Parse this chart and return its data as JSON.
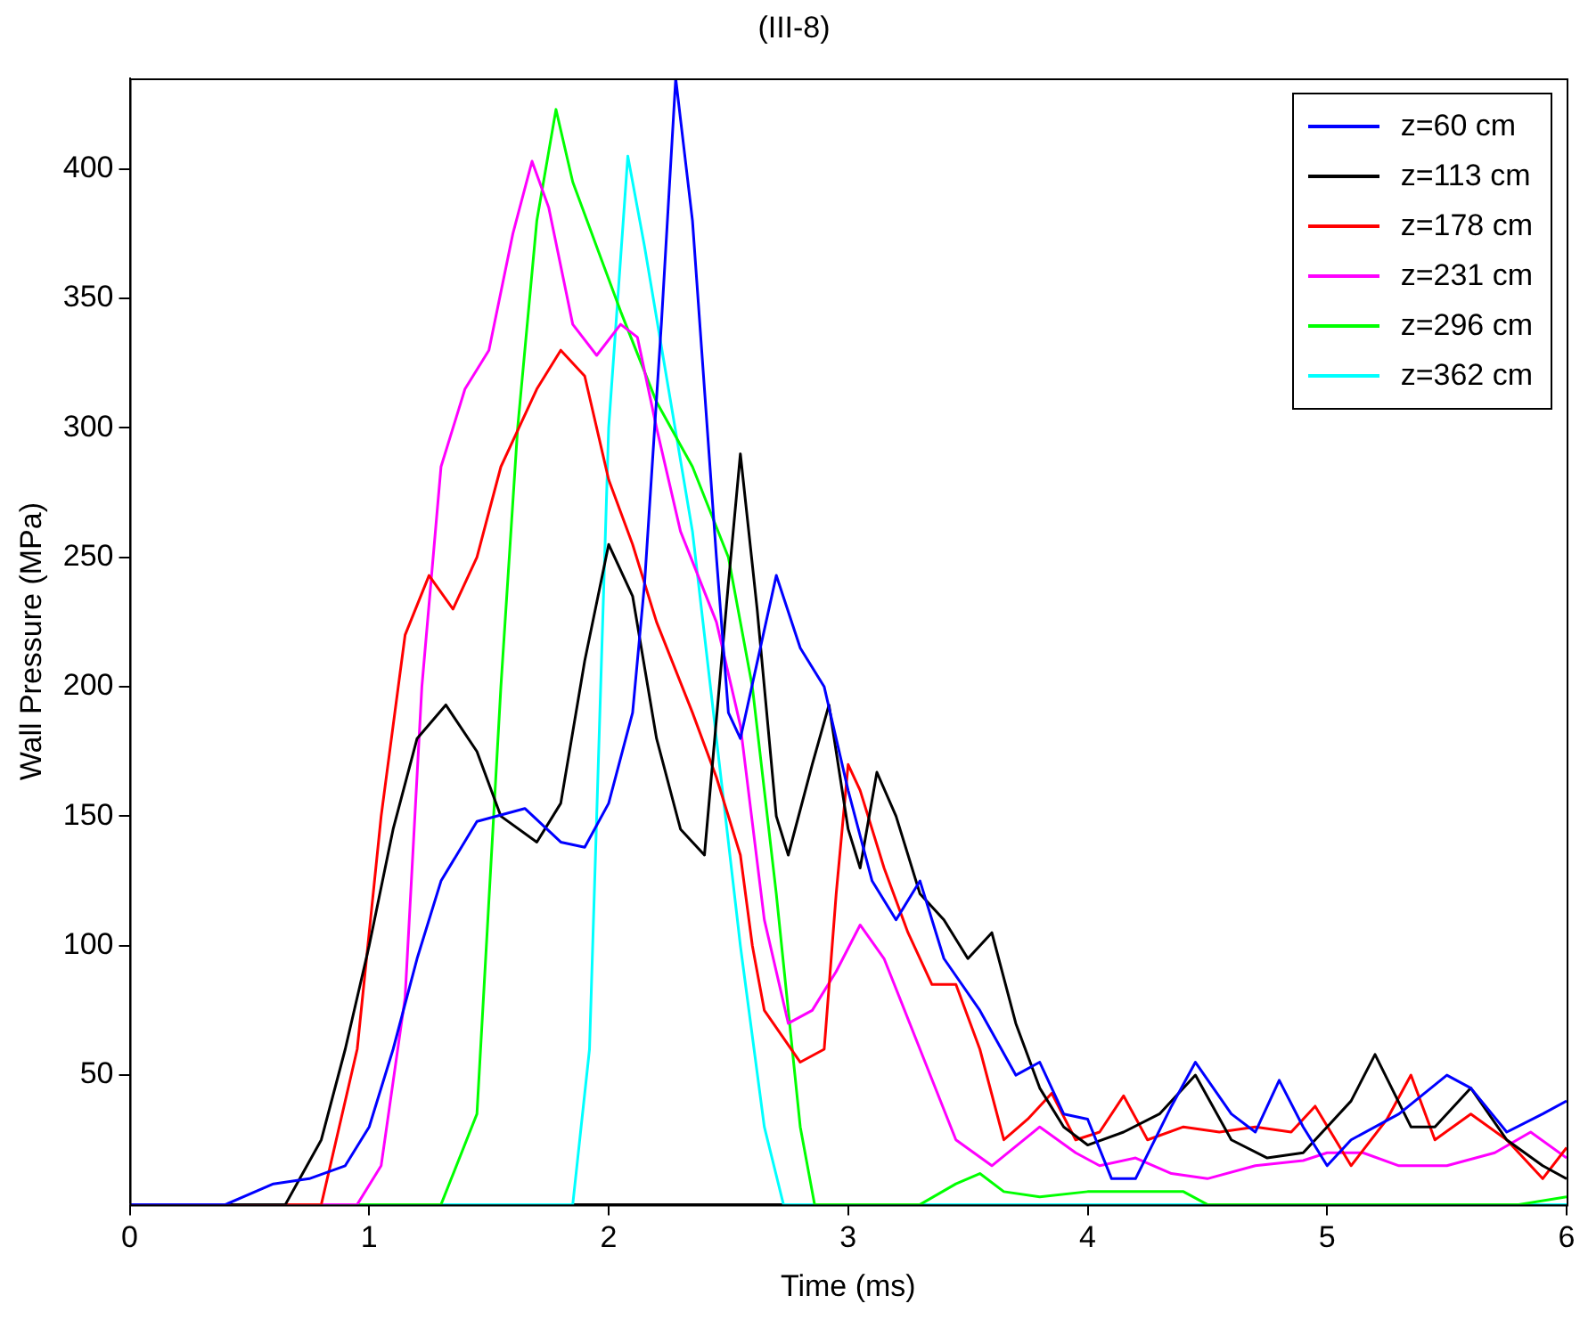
{
  "chart_data": {
    "type": "line",
    "title": "(III-8)",
    "xlabel": "Time (ms)",
    "ylabel": "Wall Pressure (MPa)",
    "xlim": [
      0,
      6
    ],
    "xticks": [
      0,
      1,
      2,
      3,
      4,
      5,
      6
    ],
    "ylim": [
      0,
      435
    ],
    "yticks": [
      50,
      100,
      150,
      200,
      250,
      300,
      350,
      400
    ],
    "grid": false,
    "legend": "top right",
    "marker": "none",
    "line_style": "solid",
    "series": [
      {
        "name": "z=60 cm",
        "color": "#0000ff",
        "x": [
          0,
          0.4,
          0.6,
          0.75,
          0.9,
          1.0,
          1.1,
          1.2,
          1.3,
          1.45,
          1.65,
          1.8,
          1.9,
          2.0,
          2.1,
          2.15,
          2.22,
          2.28,
          2.35,
          2.45,
          2.5,
          2.55,
          2.7,
          2.8,
          2.9,
          3.0,
          3.1,
          3.2,
          3.3,
          3.4,
          3.55,
          3.7,
          3.8,
          3.9,
          4.0,
          4.1,
          4.2,
          4.35,
          4.45,
          4.6,
          4.7,
          4.8,
          4.9,
          5.0,
          5.1,
          5.3,
          5.5,
          5.6,
          5.75,
          5.9,
          6.0
        ],
        "values": [
          0,
          0,
          8,
          10,
          15,
          30,
          60,
          95,
          125,
          148,
          153,
          140,
          138,
          155,
          190,
          240,
          340,
          435,
          380,
          250,
          190,
          180,
          243,
          215,
          200,
          160,
          125,
          110,
          125,
          95,
          75,
          50,
          55,
          35,
          33,
          10,
          10,
          38,
          55,
          35,
          28,
          48,
          30,
          15,
          25,
          35,
          50,
          45,
          28,
          35,
          40
        ]
      },
      {
        "name": "z=113 cm",
        "color": "#000000",
        "x": [
          0,
          0.65,
          0.8,
          0.9,
          1.0,
          1.1,
          1.2,
          1.32,
          1.45,
          1.55,
          1.7,
          1.8,
          1.9,
          2.0,
          2.1,
          2.2,
          2.3,
          2.4,
          2.5,
          2.55,
          2.62,
          2.7,
          2.75,
          2.85,
          2.92,
          3.0,
          3.05,
          3.12,
          3.2,
          3.3,
          3.4,
          3.5,
          3.6,
          3.7,
          3.8,
          3.9,
          4.0,
          4.15,
          4.3,
          4.45,
          4.6,
          4.75,
          4.9,
          5.0,
          5.1,
          5.2,
          5.35,
          5.45,
          5.6,
          5.75,
          5.9,
          6.0
        ],
        "values": [
          0,
          0,
          25,
          60,
          100,
          145,
          180,
          193,
          175,
          150,
          140,
          155,
          210,
          255,
          235,
          180,
          145,
          135,
          240,
          290,
          230,
          150,
          135,
          170,
          193,
          145,
          130,
          167,
          150,
          120,
          110,
          95,
          105,
          70,
          45,
          30,
          23,
          28,
          35,
          50,
          25,
          18,
          20,
          30,
          40,
          58,
          30,
          30,
          45,
          25,
          15,
          10
        ]
      },
      {
        "name": "z=178 cm",
        "color": "#ff0000",
        "x": [
          0,
          0.8,
          0.95,
          1.05,
          1.15,
          1.25,
          1.35,
          1.45,
          1.55,
          1.7,
          1.8,
          1.9,
          2.0,
          2.1,
          2.2,
          2.35,
          2.45,
          2.55,
          2.6,
          2.65,
          2.8,
          2.9,
          2.95,
          3.0,
          3.05,
          3.15,
          3.25,
          3.35,
          3.45,
          3.55,
          3.65,
          3.75,
          3.85,
          3.95,
          4.05,
          4.15,
          4.25,
          4.4,
          4.55,
          4.7,
          4.85,
          4.95,
          5.1,
          5.25,
          5.35,
          5.45,
          5.6,
          5.75,
          5.9,
          6.0
        ],
        "values": [
          0,
          0,
          60,
          150,
          220,
          243,
          230,
          250,
          285,
          315,
          330,
          320,
          280,
          255,
          225,
          190,
          165,
          135,
          100,
          75,
          55,
          60,
          120,
          170,
          160,
          130,
          105,
          85,
          85,
          60,
          25,
          33,
          43,
          25,
          28,
          42,
          25,
          30,
          28,
          30,
          28,
          38,
          15,
          33,
          50,
          25,
          35,
          25,
          10,
          22
        ]
      },
      {
        "name": "z=231 cm",
        "color": "#ff00ff",
        "x": [
          0,
          0.95,
          1.05,
          1.15,
          1.22,
          1.3,
          1.4,
          1.5,
          1.6,
          1.68,
          1.75,
          1.85,
          1.95,
          2.05,
          2.12,
          2.2,
          2.3,
          2.45,
          2.55,
          2.65,
          2.75,
          2.85,
          2.95,
          3.05,
          3.15,
          3.3,
          3.45,
          3.6,
          3.8,
          3.95,
          4.05,
          4.2,
          4.35,
          4.5,
          4.7,
          4.9,
          5.0,
          5.15,
          5.3,
          5.5,
          5.7,
          5.85,
          6.0
        ],
        "values": [
          0,
          0,
          15,
          80,
          200,
          285,
          315,
          330,
          375,
          403,
          385,
          340,
          328,
          340,
          335,
          300,
          260,
          225,
          185,
          110,
          70,
          75,
          90,
          108,
          95,
          60,
          25,
          15,
          30,
          20,
          15,
          18,
          12,
          10,
          15,
          17,
          20,
          20,
          15,
          15,
          20,
          28,
          18
        ]
      },
      {
        "name": "z=296 cm",
        "color": "#00ff00",
        "x": [
          0,
          1.3,
          1.45,
          1.55,
          1.62,
          1.7,
          1.78,
          1.85,
          1.95,
          2.05,
          2.2,
          2.35,
          2.5,
          2.6,
          2.7,
          2.8,
          2.86,
          3.3,
          3.45,
          3.55,
          3.65,
          3.8,
          4.0,
          4.4,
          4.5,
          5.8,
          6.0
        ],
        "values": [
          0,
          0,
          35,
          200,
          300,
          380,
          423,
          395,
          370,
          345,
          310,
          285,
          250,
          200,
          120,
          30,
          0,
          0,
          8,
          12,
          5,
          3,
          5,
          5,
          0,
          0,
          3
        ]
      },
      {
        "name": "z=362 cm",
        "color": "#00ffff",
        "x": [
          0,
          1.85,
          1.92,
          2.0,
          2.08,
          2.15,
          2.25,
          2.35,
          2.45,
          2.55,
          2.65,
          2.73,
          6.0
        ],
        "values": [
          0,
          0,
          60,
          300,
          405,
          370,
          315,
          260,
          180,
          100,
          30,
          0,
          0
        ]
      }
    ]
  }
}
